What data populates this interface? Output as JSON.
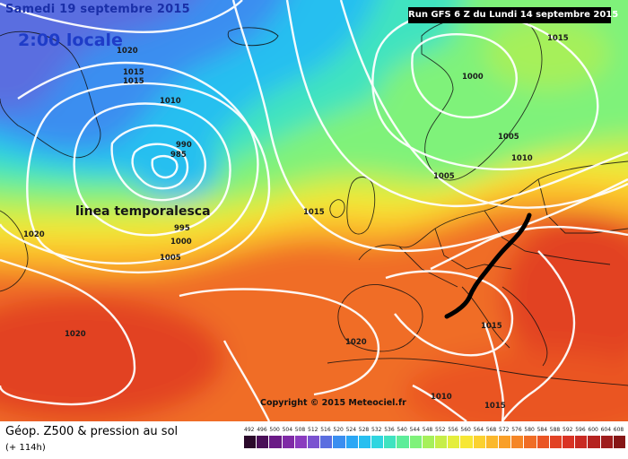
{
  "header": {
    "date": "Samedi 19 septembre 2015",
    "local_hour": "2:00 locale",
    "run": "Run GFS 6 Z du Lundi 14 septembre 2015"
  },
  "isobars": [
    {
      "label": "1020",
      "id": "1020-a"
    },
    {
      "label": "1015",
      "id": "1015-a"
    },
    {
      "label": "1015",
      "id": "1015-b"
    },
    {
      "label": "1010",
      "id": "1010-a"
    },
    {
      "label": "990",
      "id": "990"
    },
    {
      "label": "985",
      "id": "985"
    },
    {
      "label": "995",
      "id": "995"
    },
    {
      "label": "1000",
      "id": "1000-a"
    },
    {
      "label": "1005",
      "id": "1005-a"
    },
    {
      "label": "1020",
      "id": "1020-b"
    },
    {
      "label": "1015",
      "id": "1015-c"
    },
    {
      "label": "1015",
      "id": "1015-d"
    },
    {
      "label": "1000",
      "id": "1000-b"
    },
    {
      "label": "1005",
      "id": "1005-b"
    },
    {
      "label": "1010",
      "id": "1010-b"
    },
    {
      "label": "1005",
      "id": "1005-c"
    },
    {
      "label": "1015",
      "id": "1015-e"
    },
    {
      "label": "1020",
      "id": "1020-c"
    },
    {
      "label": "1020",
      "id": "1020-d"
    },
    {
      "label": "1010",
      "id": "1010-c"
    },
    {
      "label": "1015",
      "id": "1015-f"
    }
  ],
  "annotation": "linea temporalesca",
  "copyright": "Copyright © 2015 Meteociel.fr",
  "footer": {
    "title": "Géop. Z500 & pression au sol",
    "subtitle": "(+ 114h)"
  },
  "scale": {
    "ticks": [
      "492",
      "496",
      "500",
      "504",
      "508",
      "512",
      "516",
      "520",
      "524",
      "528",
      "532",
      "536",
      "540",
      "544",
      "548",
      "552",
      "556",
      "560",
      "564",
      "568",
      "572",
      "576",
      "580",
      "584",
      "588",
      "592",
      "596",
      "600",
      "604",
      "608"
    ],
    "colors": [
      "#2b0a2b",
      "#4a0f58",
      "#6a1a86",
      "#7f2aa6",
      "#8a3bbf",
      "#7a52d0",
      "#5a6ee0",
      "#3a8ef0",
      "#2aa7f5",
      "#27bff0",
      "#2fd5e0",
      "#3fe3c0",
      "#5ded9a",
      "#7ff27a",
      "#a6f05a",
      "#c6ee48",
      "#e4ee3c",
      "#f7e734",
      "#fbd12f",
      "#fbb82b",
      "#f99f28",
      "#f58626",
      "#f06d25",
      "#ea5524",
      "#e24224",
      "#d93324",
      "#c92a22",
      "#b52320",
      "#9e1c1c",
      "#861616"
    ]
  },
  "colors": {
    "front_line": "#000000",
    "isobar": "#ffffff",
    "coast": "#111111"
  }
}
